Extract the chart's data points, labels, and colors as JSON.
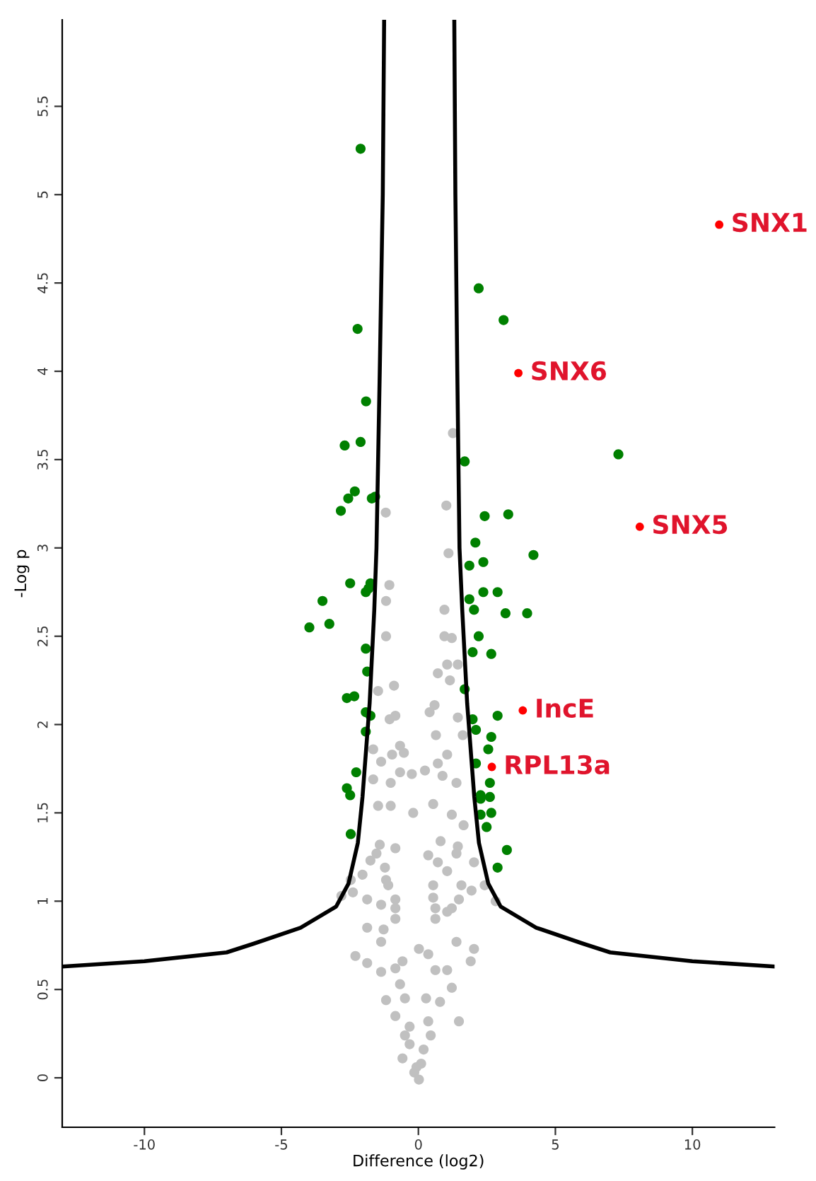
{
  "chart_data": {
    "type": "scatter",
    "xlabel": "Difference (log2)",
    "ylabel": "-Log p",
    "xlim": [
      -13,
      13
    ],
    "ylim": [
      -0.28,
      5.99
    ],
    "xticks": [
      -10,
      -5,
      0,
      5,
      10
    ],
    "yticks": [
      0,
      0.5,
      1,
      1.5,
      2,
      2.5,
      3,
      3.5,
      4,
      4.5,
      5,
      5.5
    ],
    "grid": false,
    "legend": false,
    "marker": "circle",
    "series": [
      {
        "color": "#c0c0c0",
        "x": [
          -1.19,
          -1.06,
          1.26,
          1.02,
          1.1,
          -1.18,
          0.95,
          -1.18,
          0.95,
          1.22,
          1.05,
          0.71,
          1.44,
          1.15,
          -0.89,
          -1.47,
          0.59,
          0.41,
          -1.05,
          -0.84,
          1.44,
          0.64,
          1.62,
          -0.67,
          -0.53,
          -0.96,
          -1.65,
          1.05,
          0.71,
          0.24,
          -0.24,
          -0.67,
          -1.36,
          -1.65,
          -1.01,
          1.39,
          0.88,
          -1.47,
          -1.01,
          -0.19,
          0.54,
          1.22,
          1.65,
          -1.41,
          -0.84,
          0.81,
          0.36,
          1.44,
          -1.75,
          -1.22,
          0.71,
          1.05,
          2.03,
          -2.04,
          -2.47,
          -1.1,
          0.54,
          1.57,
          2.42,
          2.82,
          -2.81,
          -1.87,
          -1.36,
          -0.84,
          0.62,
          1.22,
          -2.39,
          -1.87,
          -1.27,
          -0.84,
          0.62,
          1.05,
          1.48,
          1.94,
          2.03,
          1.91,
          -2.3,
          -1.87,
          -1.36,
          -0.84,
          -0.67,
          0.62,
          1.05,
          1.22,
          0.79,
          -1.18,
          -0.49,
          0.28,
          -0.84,
          -0.32,
          0.36,
          1.48,
          -0.58,
          -0.32,
          0.19,
          -0.07,
          0.02,
          -0.15,
          0.1,
          -0.49,
          0.45,
          -1.53,
          1.39,
          -1.18,
          -0.84,
          0.54,
          1.39,
          -1.36,
          0.02,
          -0.58,
          0.36
        ],
        "values": [
          3.2,
          2.79,
          3.65,
          3.24,
          2.97,
          2.7,
          2.65,
          2.5,
          2.5,
          2.49,
          2.34,
          2.29,
          2.34,
          2.25,
          2.22,
          2.19,
          2.11,
          2.07,
          2.03,
          2.05,
          2.04,
          1.94,
          1.94,
          1.88,
          1.84,
          1.83,
          1.86,
          1.83,
          1.78,
          1.74,
          1.72,
          1.73,
          1.79,
          1.69,
          1.67,
          1.67,
          1.71,
          1.54,
          1.54,
          1.5,
          1.55,
          1.49,
          1.43,
          1.32,
          1.3,
          1.34,
          1.26,
          1.31,
          1.23,
          1.19,
          1.22,
          1.17,
          1.22,
          1.15,
          1.12,
          1.09,
          1.09,
          1.09,
          1.09,
          1.0,
          1.03,
          1.01,
          0.98,
          0.96,
          0.96,
          0.96,
          1.05,
          0.85,
          0.84,
          0.9,
          0.9,
          0.94,
          1.01,
          1.06,
          0.73,
          0.66,
          0.69,
          0.65,
          0.6,
          0.62,
          0.53,
          0.61,
          0.61,
          0.51,
          0.43,
          0.44,
          0.45,
          0.45,
          0.35,
          0.29,
          0.32,
          0.32,
          0.11,
          0.19,
          0.16,
          0.06,
          -0.01,
          0.03,
          0.08,
          0.24,
          0.24,
          1.27,
          1.27,
          1.12,
          1.01,
          1.02,
          0.77,
          0.77,
          0.73,
          0.66,
          0.7
        ]
      },
      {
        "color": "#008000",
        "x": [
          -2.11,
          -2.22,
          -1.91,
          -2.69,
          -2.11,
          -2.83,
          -2.56,
          -2.32,
          -1.7,
          -1.58,
          -2.49,
          -1.75,
          -1.92,
          -1.82,
          -3.5,
          -3.98,
          -3.25,
          -1.92,
          -1.87,
          -2.61,
          -2.34,
          -1.92,
          -1.75,
          -1.92,
          -2.27,
          -2.61,
          -2.49,
          -2.47,
          1.86,
          2.37,
          1.86,
          2.37,
          2.89,
          2.03,
          3.18,
          3.97,
          2.2,
          1.98,
          2.66,
          1.69,
          2.89,
          1.98,
          2.1,
          2.66,
          2.55,
          2.1,
          2.61,
          2.27,
          2.27,
          2.61,
          2.66,
          2.27,
          2.49,
          3.23,
          2.89,
          2.2,
          3.11,
          7.3,
          1.69,
          2.42,
          3.28,
          2.08,
          4.2
        ],
        "values": [
          5.26,
          4.24,
          3.83,
          3.58,
          3.6,
          3.21,
          3.28,
          3.32,
          3.28,
          3.29,
          2.8,
          2.8,
          2.75,
          2.77,
          2.7,
          2.55,
          2.57,
          2.43,
          2.3,
          2.15,
          2.16,
          2.07,
          2.05,
          1.96,
          1.73,
          1.64,
          1.6,
          1.38,
          2.9,
          2.92,
          2.71,
          2.75,
          2.75,
          2.65,
          2.63,
          2.63,
          2.5,
          2.41,
          2.4,
          2.2,
          2.05,
          2.03,
          1.97,
          1.93,
          1.86,
          1.78,
          1.67,
          1.6,
          1.58,
          1.59,
          1.5,
          1.49,
          1.42,
          1.29,
          1.19,
          4.47,
          4.29,
          3.53,
          3.49,
          3.18,
          3.19,
          3.03,
          2.96
        ]
      },
      {
        "color": "#ff0000",
        "x": [
          10.98,
          3.65,
          8.08,
          3.81,
          2.68
        ],
        "values": [
          4.83,
          3.99,
          3.12,
          2.08,
          1.76
        ]
      },
      {
        "type": "line",
        "color": "#000000",
        "marker": "none",
        "x": [
          -13,
          -10,
          -7,
          -6,
          -4.3,
          -3.0,
          -2.55,
          -2.21,
          -2.04,
          -1.78,
          -1.61,
          -1.53,
          -1.41,
          -1.3,
          -1.25
        ],
        "values": [
          0.63,
          0.66,
          0.71,
          0.76,
          0.85,
          0.97,
          1.1,
          1.33,
          1.59,
          2.12,
          2.65,
          3.0,
          4.0,
          5.0,
          5.99
        ]
      },
      {
        "type": "line",
        "color": "#000000",
        "marker": "none",
        "x": [
          1.31,
          1.35,
          1.42,
          1.5,
          1.6,
          1.78,
          2.04,
          2.21,
          2.55,
          3.0,
          4.3,
          6,
          7,
          10,
          13
        ],
        "values": [
          5.99,
          5.0,
          4.0,
          3.0,
          2.65,
          2.12,
          1.59,
          1.33,
          1.1,
          0.97,
          0.85,
          0.76,
          0.71,
          0.66,
          0.63
        ]
      }
    ],
    "annotations": [
      {
        "text": "SNX1",
        "x": 10.98,
        "y": 4.83
      },
      {
        "text": "SNX6",
        "x": 3.65,
        "y": 3.99
      },
      {
        "text": "SNX5",
        "x": 8.08,
        "y": 3.12
      },
      {
        "text": "IncE",
        "x": 3.81,
        "y": 2.08
      },
      {
        "text": "RPL13a",
        "x": 2.68,
        "y": 1.76
      }
    ]
  }
}
